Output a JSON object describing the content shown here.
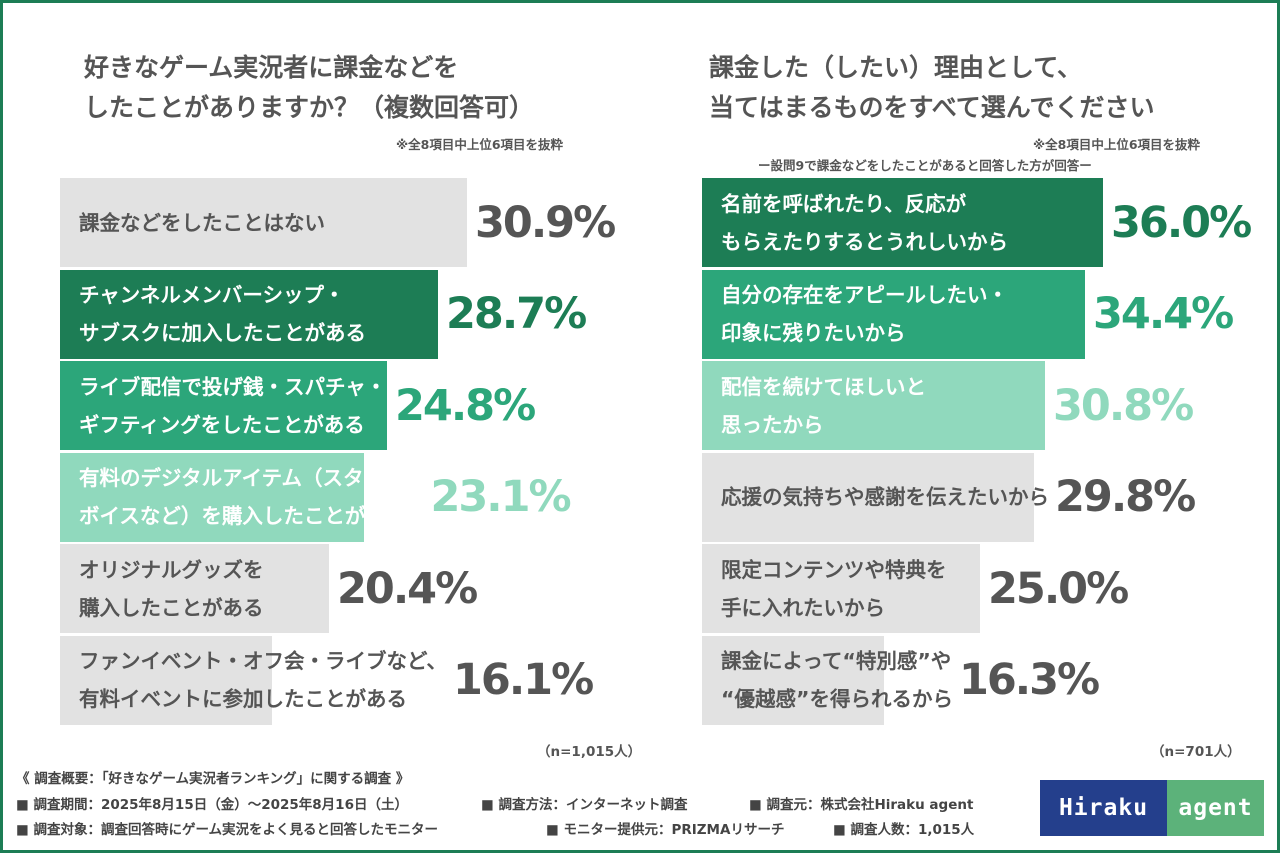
{
  "chart_data": [
    {
      "type": "bar",
      "orientation": "horizontal",
      "title": "好きなゲーム実況者に課金などをしたことがありますか？（複数回答可）",
      "title_lines": [
        "好きなゲーム実況者に課金などを",
        "したことがありますか？（複数回答可）"
      ],
      "note": "※全8項目中上位6項目を抜粋",
      "n_label": "（n=1,015人）",
      "xlim": [
        0,
        40
      ],
      "categories": [
        "課金などをしたことはない",
        "チャンネルメンバーシップ・\nサブスクに加入したことがある",
        "ライブ配信で投げ銭・スパチャ・\nギフティングをしたことがある",
        "有料のデジタルアイテム（スタンプ・\nボイスなど）を購入したことがある",
        "オリジナルグッズを\n購入したことがある",
        "ファンイベント・オフ会・ライブなど、\n有料イベントに参加したことがある"
      ],
      "values": [
        30.9,
        28.7,
        24.8,
        23.1,
        20.4,
        16.1
      ],
      "value_labels": [
        "30.9%",
        "28.7%",
        "24.8%",
        "23.1%",
        "20.4%",
        "16.1%"
      ],
      "bar_colors": [
        "#e2e2e2",
        "#1d7d55",
        "#2ca67a",
        "#90d9bd",
        "#e2e2e2",
        "#e2e2e2"
      ],
      "label_colors": [
        "#555555",
        "#ffffff",
        "#ffffff",
        "#ffffff",
        "#555555",
        "#555555"
      ],
      "value_colors": [
        "#555555",
        "#1d7d55",
        "#2ca67a",
        "#90d9bd",
        "#555555",
        "#555555"
      ]
    },
    {
      "type": "bar",
      "orientation": "horizontal",
      "title": "課金した（したい）理由として、当てはまるものをすべて選んでください",
      "title_lines": [
        "課金した（したい）理由として、",
        "当てはまるものをすべて選んでください"
      ],
      "note": "※全8項目中上位6項目を抜粋",
      "subnote": "ー設問9で課金などをしたことがあると回答した方が回答ー",
      "n_label": "（n=701人）",
      "xlim": [
        0,
        44
      ],
      "categories": [
        "名前を呼ばれたり、反応が\nもらえたりするとうれしいから",
        "自分の存在をアピールしたい・\n印象に残りたいから",
        "配信を続けてほしいと\n思ったから",
        "応援の気持ちや感謝を伝えたいから",
        "限定コンテンツや特典を\n手に入れたいから",
        "課金によって“特別感”や\n“優越感”を得られるから"
      ],
      "values": [
        36.0,
        34.4,
        30.8,
        29.8,
        25.0,
        16.3
      ],
      "value_labels": [
        "36.0%",
        "34.4%",
        "30.8%",
        "29.8%",
        "25.0%",
        "16.3%"
      ],
      "bar_colors": [
        "#1d7d55",
        "#2ca67a",
        "#90d9bd",
        "#e2e2e2",
        "#e2e2e2",
        "#e2e2e2"
      ],
      "label_colors": [
        "#ffffff",
        "#ffffff",
        "#ffffff",
        "#555555",
        "#555555",
        "#555555"
      ],
      "value_colors": [
        "#1d7d55",
        "#2ca67a",
        "#90d9bd",
        "#555555",
        "#555555",
        "#555555"
      ]
    }
  ],
  "footer": {
    "summary": "《 調査概要：「好きなゲーム実況者ランキング」に関する調査 》",
    "period": "■ 調査期間：2025年8月15日（金）〜2025年8月16日（土）",
    "method": "■ 調査方法：インターネット調査",
    "source": "■ 調査元：株式会社Hiraku agent",
    "target": "■ 調査対象：調査回答時にゲーム実況をよく見ると回答したモニター",
    "provider": "■ モニター提供元：PRIZMAリサーチ",
    "count": "■ 調査人数：1,015人"
  },
  "logo": {
    "left": "Hiraku",
    "right": "agent"
  }
}
